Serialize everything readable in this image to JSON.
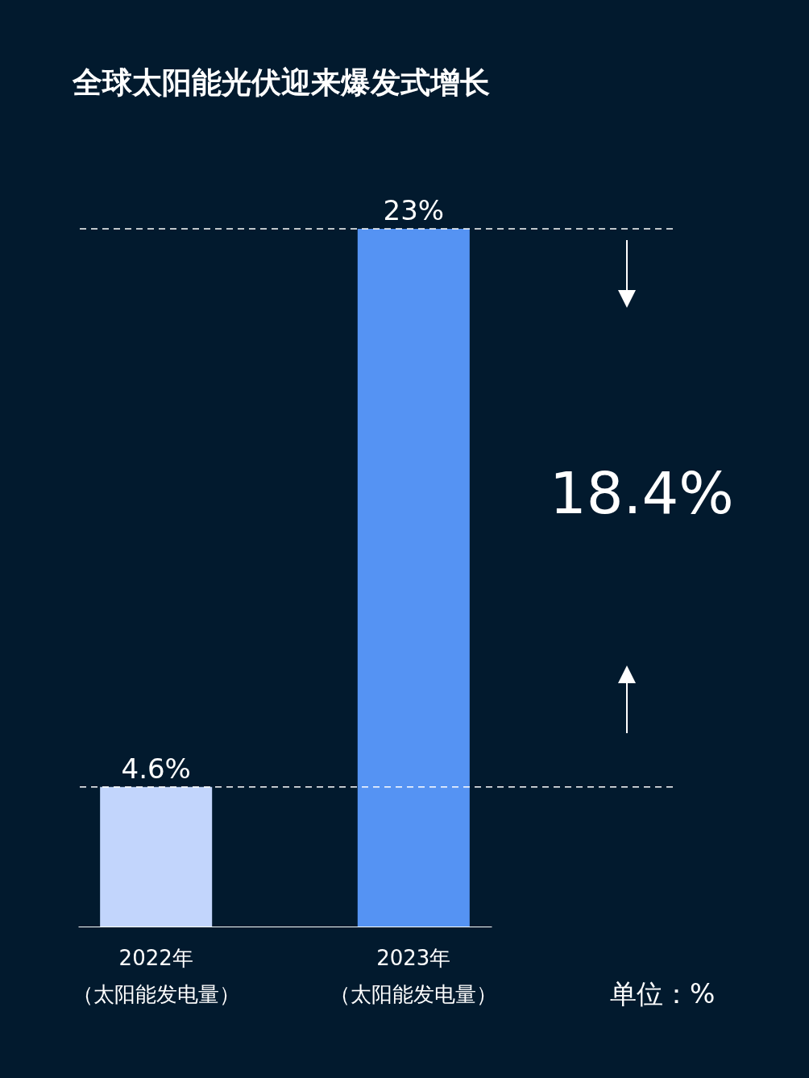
{
  "chart_data": {
    "type": "bar",
    "title": "全球太阳能光伏迎来爆发式增长",
    "categories": [
      "2022年（太阳能发电量）",
      "2023年（太阳能发电量）"
    ],
    "values": [
      4.6,
      23
    ],
    "colors": [
      "#c2d5fc",
      "#5593f3"
    ],
    "value_labels": [
      "4.6%",
      "23%"
    ],
    "ylim": [
      0,
      23
    ],
    "tick_labels": "x",
    "grid": false,
    "ref_lines": [
      {
        "axis": "y",
        "value": 4.6,
        "color": "#ffffff",
        "line_style": "dashed"
      },
      {
        "axis": "y",
        "value": 23,
        "color": "#ffffff",
        "line_style": "dashed"
      }
    ],
    "annotations": [
      "18.4%",
      "单位：%"
    ]
  }
}
